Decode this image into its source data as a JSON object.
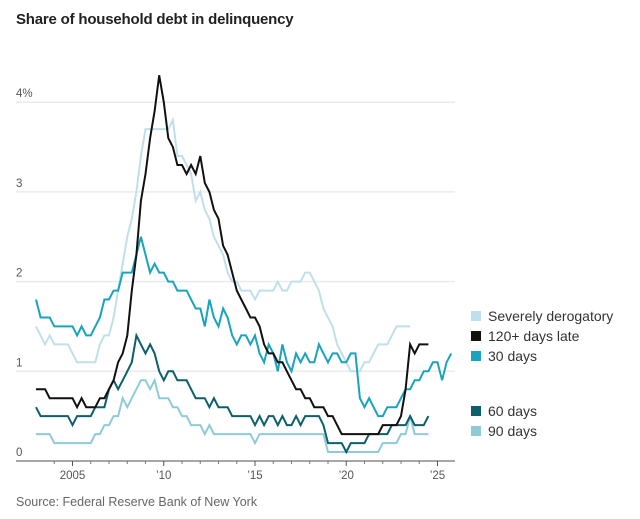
{
  "chart_data": {
    "type": "line",
    "title": "Share of household debt in delinquency",
    "source": "Source: Federal Reserve Bank of New York",
    "xlabel": "",
    "ylabel": "",
    "x_start": 2003.0,
    "x_step": 0.25,
    "xlim": [
      2002.85,
      2025.95
    ],
    "ylim": [
      0,
      4.3
    ],
    "yticks": [
      {
        "value": 0,
        "label": "0"
      },
      {
        "value": 1,
        "label": "1"
      },
      {
        "value": 2,
        "label": "2"
      },
      {
        "value": 3,
        "label": "3"
      },
      {
        "value": 4,
        "label": "4%"
      }
    ],
    "xticks_major": [
      {
        "value": 2005,
        "label": "2005"
      },
      {
        "value": 2010,
        "label": "’10"
      },
      {
        "value": 2015,
        "label": "’15"
      },
      {
        "value": 2020,
        "label": "’20"
      },
      {
        "value": 2025,
        "label": "’25"
      }
    ],
    "xticks_minor": [
      2004,
      2006,
      2007,
      2008,
      2009,
      2011,
      2012,
      2013,
      2014,
      2016,
      2017,
      2018,
      2019,
      2021,
      2022,
      2023,
      2024
    ],
    "grid": true,
    "legend_position": "right",
    "series": [
      {
        "name": "Severely derogatory",
        "color": "#bfe0ea",
        "values": [
          1.5,
          1.4,
          1.3,
          1.4,
          1.3,
          1.3,
          1.3,
          1.3,
          1.2,
          1.1,
          1.1,
          1.1,
          1.1,
          1.1,
          1.3,
          1.4,
          1.4,
          1.6,
          1.9,
          2.2,
          2.5,
          2.7,
          3.0,
          3.4,
          3.7,
          3.7,
          3.7,
          3.7,
          3.7,
          3.7,
          3.8,
          3.4,
          3.4,
          3.3,
          3.2,
          2.9,
          3.0,
          2.8,
          2.7,
          2.5,
          2.4,
          2.3,
          2.1,
          2.0,
          2.0,
          1.9,
          1.9,
          1.9,
          1.8,
          1.9,
          1.9,
          1.9,
          1.9,
          2.0,
          1.9,
          1.9,
          2.0,
          2.0,
          2.0,
          2.1,
          2.1,
          2.0,
          1.9,
          1.7,
          1.6,
          1.5,
          1.3,
          1.2,
          1.1,
          1.0,
          1.0,
          1.0,
          1.1,
          1.1,
          1.2,
          1.3,
          1.3,
          1.3,
          1.4,
          1.5,
          1.5,
          1.5,
          1.5
        ]
      },
      {
        "name": "120+ days late",
        "color": "#111111",
        "values": [
          0.8,
          0.8,
          0.8,
          0.7,
          0.7,
          0.7,
          0.7,
          0.7,
          0.7,
          0.6,
          0.7,
          0.6,
          0.6,
          0.6,
          0.7,
          0.7,
          0.8,
          0.9,
          1.1,
          1.2,
          1.4,
          1.9,
          2.3,
          2.9,
          3.2,
          3.6,
          3.9,
          4.3,
          4.0,
          3.6,
          3.5,
          3.3,
          3.3,
          3.2,
          3.3,
          3.2,
          3.4,
          3.1,
          3.0,
          2.8,
          2.7,
          2.4,
          2.3,
          2.1,
          1.9,
          1.8,
          1.7,
          1.6,
          1.6,
          1.5,
          1.3,
          1.2,
          1.2,
          1.1,
          1.1,
          1.0,
          0.9,
          0.8,
          0.8,
          0.7,
          0.7,
          0.6,
          0.6,
          0.6,
          0.5,
          0.5,
          0.4,
          0.3,
          0.3,
          0.3,
          0.3,
          0.3,
          0.3,
          0.3,
          0.3,
          0.3,
          0.4,
          0.4,
          0.4,
          0.4,
          0.5,
          0.8,
          1.3,
          1.2,
          1.3,
          1.3,
          1.3
        ]
      },
      {
        "name": "30 days",
        "color": "#1aa3bd",
        "values": [
          1.8,
          1.6,
          1.6,
          1.6,
          1.5,
          1.5,
          1.5,
          1.5,
          1.5,
          1.4,
          1.5,
          1.4,
          1.4,
          1.5,
          1.6,
          1.8,
          1.8,
          1.9,
          1.9,
          2.1,
          2.1,
          2.1,
          2.3,
          2.5,
          2.3,
          2.1,
          2.2,
          2.1,
          2.1,
          2.0,
          2.0,
          1.9,
          1.9,
          1.9,
          1.8,
          1.7,
          1.7,
          1.5,
          1.8,
          1.6,
          1.5,
          1.7,
          1.6,
          1.4,
          1.3,
          1.4,
          1.4,
          1.3,
          1.4,
          1.2,
          1.1,
          1.3,
          1.2,
          1.0,
          1.3,
          1.1,
          1.0,
          1.2,
          1.1,
          1.2,
          1.1,
          1.1,
          1.3,
          1.2,
          1.1,
          1.2,
          1.2,
          1.1,
          1.1,
          1.2,
          1.2,
          0.7,
          0.6,
          0.7,
          0.6,
          0.5,
          0.5,
          0.6,
          0.6,
          0.6,
          0.7,
          0.8,
          0.8,
          0.9,
          0.9,
          1.0,
          1.0,
          1.1,
          1.1,
          0.9,
          1.1,
          1.2
        ]
      },
      {
        "name": "60 days",
        "color": "#0c5f6b",
        "values": [
          0.6,
          0.5,
          0.5,
          0.5,
          0.5,
          0.5,
          0.5,
          0.5,
          0.4,
          0.5,
          0.5,
          0.5,
          0.5,
          0.6,
          0.6,
          0.6,
          0.8,
          0.9,
          0.8,
          0.9,
          1.0,
          1.1,
          1.4,
          1.3,
          1.2,
          1.3,
          1.2,
          1.0,
          0.9,
          1.0,
          1.0,
          0.9,
          0.9,
          0.9,
          0.8,
          0.7,
          0.7,
          0.7,
          0.6,
          0.7,
          0.6,
          0.6,
          0.6,
          0.5,
          0.5,
          0.5,
          0.5,
          0.5,
          0.4,
          0.5,
          0.4,
          0.5,
          0.5,
          0.4,
          0.5,
          0.4,
          0.4,
          0.5,
          0.4,
          0.5,
          0.5,
          0.5,
          0.5,
          0.4,
          0.2,
          0.2,
          0.2,
          0.2,
          0.1,
          0.2,
          0.2,
          0.2,
          0.2,
          0.3,
          0.3,
          0.3,
          0.3,
          0.3,
          0.4,
          0.4,
          0.4,
          0.4,
          0.5,
          0.4,
          0.4,
          0.4,
          0.5
        ]
      },
      {
        "name": "90 days",
        "color": "#8ecbd9",
        "values": [
          0.3,
          0.3,
          0.3,
          0.3,
          0.2,
          0.2,
          0.2,
          0.2,
          0.2,
          0.2,
          0.2,
          0.2,
          0.2,
          0.3,
          0.3,
          0.4,
          0.4,
          0.5,
          0.5,
          0.7,
          0.6,
          0.7,
          0.8,
          0.9,
          0.9,
          0.8,
          0.9,
          0.7,
          0.7,
          0.7,
          0.6,
          0.6,
          0.5,
          0.5,
          0.4,
          0.4,
          0.4,
          0.3,
          0.4,
          0.3,
          0.3,
          0.3,
          0.3,
          0.3,
          0.3,
          0.3,
          0.3,
          0.3,
          0.2,
          0.3,
          0.3,
          0.3,
          0.3,
          0.3,
          0.3,
          0.3,
          0.3,
          0.3,
          0.3,
          0.3,
          0.3,
          0.3,
          0.3,
          0.3,
          0.1,
          0.1,
          0.1,
          0.1,
          0.1,
          0.1,
          0.1,
          0.1,
          0.1,
          0.1,
          0.1,
          0.1,
          0.2,
          0.2,
          0.2,
          0.2,
          0.3,
          0.3,
          0.5,
          0.3,
          0.3,
          0.3,
          0.3
        ]
      }
    ]
  },
  "legend": {
    "items": [
      {
        "label": "Severely derogatory",
        "color": "#bfe0ea"
      },
      {
        "label": "120+ days late",
        "color": "#111111"
      },
      {
        "label": "30 days",
        "color": "#1aa3bd"
      },
      {
        "label": "60 days",
        "color": "#0c5f6b"
      },
      {
        "label": "90 days",
        "color": "#8ecbd9"
      }
    ]
  }
}
